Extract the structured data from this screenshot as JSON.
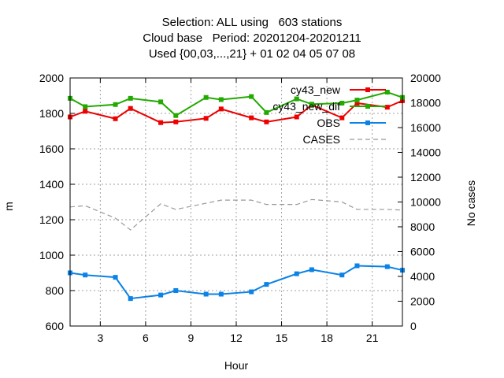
{
  "title_lines": [
    "Selection: ALL using   603 stations",
    "Cloud base   Period: 20201204-20201211",
    "Used {00,03,...,21} + 01 02 04 05 07 08"
  ],
  "chart_data": {
    "type": "line",
    "xlabel": "Hour",
    "ylabel": "m",
    "y2label": "No cases",
    "xlim": [
      1,
      23
    ],
    "ylim": [
      600,
      2000
    ],
    "y2lim": [
      0,
      20000
    ],
    "xticks": [
      3,
      6,
      9,
      12,
      15,
      18,
      21
    ],
    "yticks": [
      600,
      800,
      1000,
      1200,
      1400,
      1600,
      1800,
      2000
    ],
    "y2ticks": [
      0,
      2000,
      4000,
      6000,
      8000,
      10000,
      12000,
      14000,
      16000,
      18000,
      20000
    ],
    "grid": true,
    "legend_position": "top-right",
    "x": [
      1,
      2,
      4,
      5,
      7,
      8,
      10,
      11,
      13,
      14,
      16,
      17,
      19,
      20,
      22,
      23
    ],
    "series": [
      {
        "name": "cy43_new",
        "color": "#ee0000",
        "axis": "y",
        "values": [
          1780,
          1812,
          1770,
          1828,
          1748,
          1752,
          1772,
          1825,
          1775,
          1752,
          1780,
          1848,
          1775,
          1858,
          1835,
          1872
        ]
      },
      {
        "name": "cy43_new_dif",
        "color": "#22aa00",
        "axis": "y",
        "values": [
          1885,
          1838,
          1850,
          1885,
          1865,
          1788,
          1890,
          1878,
          1895,
          1805,
          1882,
          1852,
          1858,
          1875,
          1920,
          1890
        ]
      },
      {
        "name": "OBS",
        "color": "#0a82e6",
        "axis": "y",
        "values": [
          900,
          888,
          875,
          755,
          775,
          800,
          780,
          780,
          793,
          835,
          895,
          918,
          888,
          940,
          935,
          915
        ]
      },
      {
        "name": "CASES",
        "color": "#999999",
        "axis": "y2",
        "dashed": true,
        "values": [
          9600,
          9700,
          8700,
          7750,
          9850,
          9400,
          9900,
          10150,
          10150,
          9800,
          9800,
          10200,
          10000,
          9400,
          9400,
          9350
        ]
      }
    ]
  }
}
